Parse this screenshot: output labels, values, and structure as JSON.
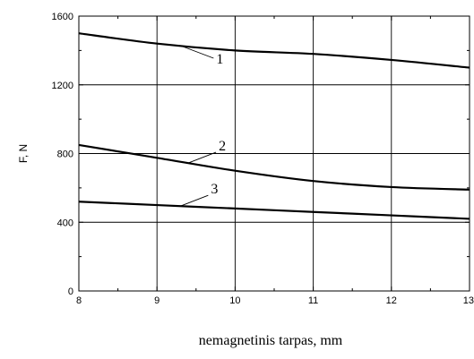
{
  "chart_data": {
    "type": "line",
    "xlabel": "nemagnetinis tarpas, mm",
    "ylabel": "F, N",
    "xlim": [
      8,
      13
    ],
    "ylim": [
      0,
      1600
    ],
    "xticks": [
      "8",
      "9",
      "10",
      "11",
      "12",
      "13"
    ],
    "yticks": [
      "0",
      "400",
      "800",
      "1200",
      "1600"
    ],
    "grid": true,
    "series": [
      {
        "name": "1",
        "x": [
          8,
          9,
          10,
          11,
          12,
          13
        ],
        "values": [
          1500,
          1440,
          1400,
          1380,
          1345,
          1300
        ]
      },
      {
        "name": "2",
        "x": [
          8,
          9,
          10,
          11,
          12,
          13
        ],
        "values": [
          850,
          775,
          700,
          640,
          605,
          590
        ]
      },
      {
        "name": "3",
        "x": [
          8,
          9,
          10,
          11,
          12,
          13
        ],
        "values": [
          520,
          500,
          480,
          460,
          440,
          420
        ]
      }
    ]
  }
}
